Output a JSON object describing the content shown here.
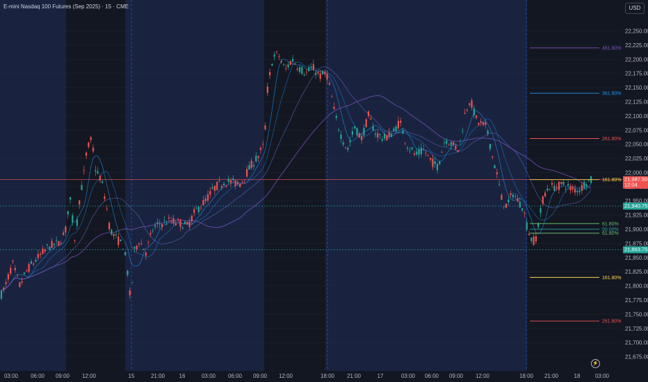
{
  "header": {
    "title": "E-mini Nasdaq 100 Futures (Sep 2025) · 15 · CME",
    "currency": "USD"
  },
  "icons": {
    "replay": "lightning-icon"
  },
  "colors": {
    "background": "#131722",
    "session_shade": "#192340",
    "up": "#26a69a",
    "down": "#ef5350",
    "grid": "#2a2e39"
  },
  "chart_data": {
    "type": "candlestick",
    "ylim": [
      21650,
      22280
    ],
    "y_ticks": [
      "22,250.00",
      "22,225.00",
      "22,200.00",
      "22,175.00",
      "22,150.00",
      "22,125.00",
      "22,100.00",
      "22,075.00",
      "22,050.00",
      "22,025.00",
      "22,000.00",
      "21,975.00",
      "21,950.00",
      "21,925.00",
      "21,900.00",
      "21,875.00",
      "21,850.00",
      "21,825.00",
      "21,800.00",
      "21,775.00",
      "21,750.00",
      "21,725.00",
      "21,700.00",
      "21,675.00"
    ],
    "x_ticks": [
      "03:00",
      "06:00",
      "09:00",
      "12:00",
      "15",
      "21:00",
      "16",
      "03:00",
      "06:00",
      "09:00",
      "12:00",
      "18:00",
      "21:00",
      "17",
      "03:00",
      "06:00",
      "09:00",
      "12:00",
      "18:00",
      "21:00",
      "18",
      "03:00"
    ],
    "price_path": [
      [
        0,
        21780
      ],
      [
        8,
        21800
      ],
      [
        18,
        21840
      ],
      [
        28,
        21800
      ],
      [
        40,
        21830
      ],
      [
        55,
        21850
      ],
      [
        70,
        21870
      ],
      [
        85,
        21875
      ],
      [
        95,
        21900
      ],
      [
        100,
        21960
      ],
      [
        108,
        21880
      ],
      [
        115,
        21960
      ],
      [
        120,
        21990
      ],
      [
        125,
        22040
      ],
      [
        132,
        22060
      ],
      [
        138,
        22000
      ],
      [
        145,
        21990
      ],
      [
        152,
        21950
      ],
      [
        158,
        21900
      ],
      [
        163,
        21890
      ],
      [
        170,
        21880
      ],
      [
        178,
        21870
      ],
      [
        183,
        21830
      ],
      [
        188,
        21770
      ],
      [
        193,
        21860
      ],
      [
        200,
        21880
      ],
      [
        210,
        21860
      ],
      [
        220,
        21900
      ],
      [
        230,
        21910
      ],
      [
        245,
        21915
      ],
      [
        260,
        21910
      ],
      [
        270,
        21905
      ],
      [
        280,
        21930
      ],
      [
        295,
        21950
      ],
      [
        310,
        21975
      ],
      [
        325,
        21985
      ],
      [
        345,
        21980
      ],
      [
        360,
        22010
      ],
      [
        372,
        22030
      ],
      [
        380,
        22050
      ],
      [
        385,
        22150
      ],
      [
        392,
        22200
      ],
      [
        400,
        22210
      ],
      [
        410,
        22180
      ],
      [
        420,
        22200
      ],
      [
        430,
        22185
      ],
      [
        440,
        22175
      ],
      [
        450,
        22185
      ],
      [
        460,
        22170
      ],
      [
        470,
        22175
      ],
      [
        476,
        22140
      ],
      [
        482,
        22100
      ],
      [
        492,
        22060
      ],
      [
        500,
        22040
      ],
      [
        510,
        22080
      ],
      [
        520,
        22060
      ],
      [
        530,
        22100
      ],
      [
        540,
        22070
      ],
      [
        552,
        22060
      ],
      [
        565,
        22070
      ],
      [
        575,
        22090
      ],
      [
        585,
        22050
      ],
      [
        598,
        22030
      ],
      [
        610,
        22040
      ],
      [
        620,
        22020
      ],
      [
        630,
        22010
      ],
      [
        640,
        22060
      ],
      [
        650,
        22050
      ],
      [
        660,
        22040
      ],
      [
        668,
        22100
      ],
      [
        676,
        22130
      ],
      [
        686,
        22090
      ],
      [
        700,
        22080
      ],
      [
        708,
        22030
      ],
      [
        716,
        21990
      ],
      [
        722,
        21950
      ],
      [
        730,
        21940
      ],
      [
        737,
        21965
      ],
      [
        745,
        21950
      ],
      [
        752,
        21940
      ],
      [
        758,
        21905
      ],
      [
        765,
        21880
      ],
      [
        770,
        21880
      ],
      [
        776,
        21920
      ],
      [
        782,
        21960
      ],
      [
        790,
        21975
      ],
      [
        800,
        21975
      ],
      [
        812,
        21980
      ],
      [
        822,
        21970
      ],
      [
        834,
        21970
      ],
      [
        842,
        21983
      ],
      [
        852,
        21987
      ]
    ],
    "horizontal_levels": [
      {
        "price": 21987.5,
        "label": "21,987.50",
        "sub": "12:04",
        "style": "solid",
        "color": "#ef5350"
      },
      {
        "price": 21940.75,
        "label": "21,940.75",
        "style": "dotted",
        "color": "#26a69a"
      },
      {
        "price": 21863.75,
        "label": "21,863.75",
        "style": "dotted",
        "color": "#26a69a"
      }
    ],
    "fib_levels": [
      {
        "label": "461.80%",
        "price": 22220,
        "color": "#7e57c2"
      },
      {
        "label": "361.80%",
        "price": 22140,
        "color": "#2196f3"
      },
      {
        "label": "261.80%",
        "price": 22060,
        "color": "#ef5350"
      },
      {
        "label": "161.80%",
        "price": 21987.5,
        "color": "#ffd54f"
      },
      {
        "label": "61.80%",
        "price": 21910,
        "color": "#66bb6a"
      },
      {
        "label": "50.00%",
        "price": 21900,
        "color": "#26a69a"
      },
      {
        "label": "61.80%",
        "price": 21893,
        "color": "#66bb6a"
      },
      {
        "label": "161.80%",
        "price": 21815,
        "color": "#ffd54f"
      },
      {
        "label": "261.80%",
        "price": 21738,
        "color": "#ef5350"
      }
    ]
  }
}
